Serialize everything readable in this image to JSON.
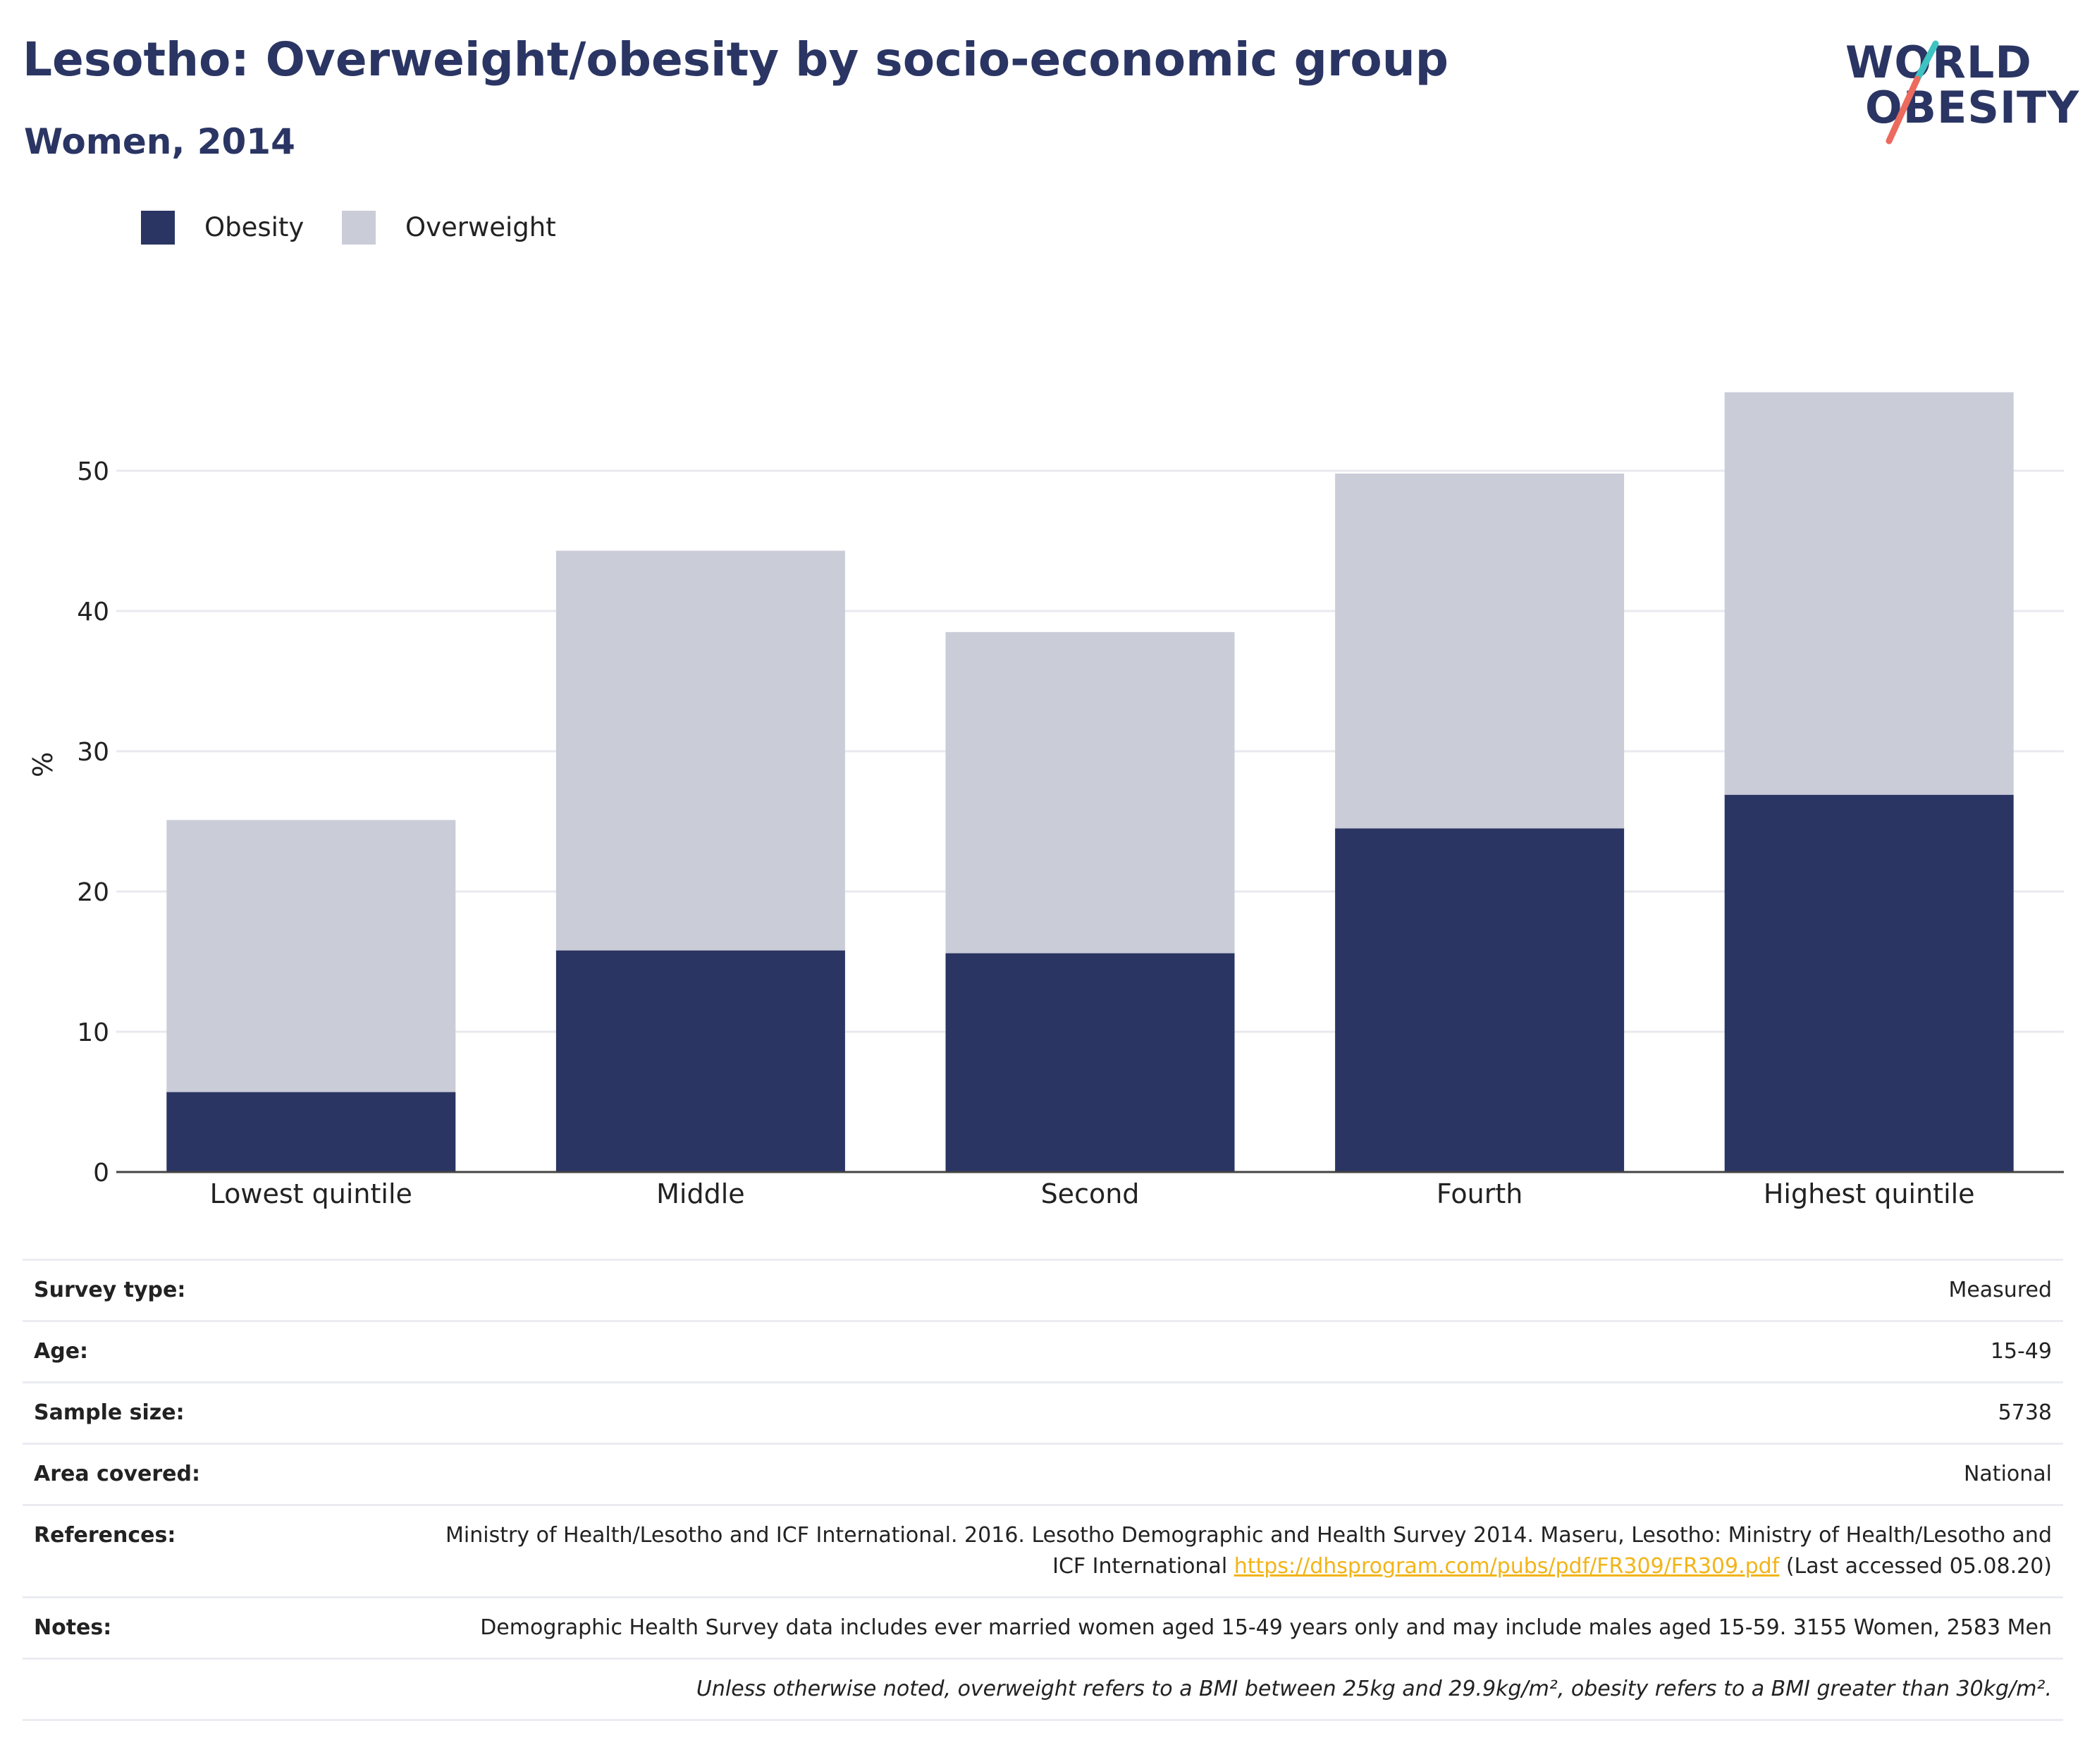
{
  "header": {
    "title": "Lesotho: Overweight/obesity by socio-economic group",
    "subtitle": "Women, 2014",
    "logo": {
      "text_line1": "WORLD",
      "text_line2": "OBESITY"
    }
  },
  "colors": {
    "obesity": "#2a3563",
    "overweight": "#caccd8",
    "logo_slash_top": "#3ec3c1",
    "logo_slash_bottom": "#ec6a5e",
    "link": "#f2b418"
  },
  "legend": [
    {
      "label": "Obesity"
    },
    {
      "label": "Overweight"
    }
  ],
  "chart_data": {
    "type": "bar",
    "stacked": true,
    "categories": [
      "Lowest quintile",
      "Middle",
      "Second",
      "Fourth",
      "Highest quintile"
    ],
    "series": [
      {
        "name": "Obesity",
        "values": [
          5.7,
          15.8,
          15.6,
          24.5,
          26.9
        ]
      },
      {
        "name": "Overweight",
        "values": [
          19.4,
          28.5,
          22.9,
          25.3,
          28.7
        ]
      }
    ],
    "ylabel": "%",
    "ylim": [
      0,
      58
    ],
    "yticks": [
      0,
      10,
      20,
      30,
      40,
      50
    ],
    "grid": true,
    "legend_position": "top-left"
  },
  "info": {
    "rows": [
      {
        "key": "Survey type:",
        "value": "Measured"
      },
      {
        "key": "Age:",
        "value": "15-49"
      },
      {
        "key": "Sample size:",
        "value": "5738"
      },
      {
        "key": "Area covered:",
        "value": "National"
      }
    ],
    "references": {
      "key": "References:",
      "text_before": "Ministry of Health/Lesotho and ICF International. 2016. Lesotho Demographic and Health Survey 2014. Maseru, Lesotho: Ministry of Health/Lesotho and ICF International ",
      "link": "https://dhsprogram.com/pubs/pdf/FR309/FR309.pdf",
      "text_after": " (Last accessed 05.08.20)"
    },
    "notes": {
      "key": "Notes:",
      "value": "Demographic Health Survey data includes ever married women aged 15-49 years only and may include males aged 15-59. 3155 Women, 2583 Men"
    },
    "footnote": "Unless otherwise noted, overweight refers to a BMI between 25kg and 29.9kg/m², obesity refers to a BMI greater than 30kg/m²."
  }
}
